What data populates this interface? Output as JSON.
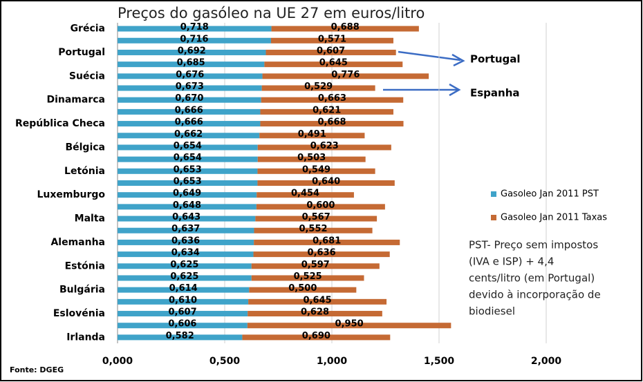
{
  "chart_data": {
    "type": "stacked_barh",
    "title": "Preços do gasóleo na UE 27 em euros/litro",
    "categories": [
      "Grécia",
      null,
      "Portugal",
      null,
      "Suécia",
      null,
      "Dinamarca",
      null,
      "República Checa",
      null,
      "Bélgica",
      null,
      "Letónia",
      null,
      "Luxemburgo",
      null,
      "Malta",
      null,
      "Alemanha",
      null,
      "Estónia",
      null,
      "Bulgária",
      null,
      "Eslovénia",
      null,
      "Irlanda"
    ],
    "series": [
      {
        "name": "Gasoleo Jan 2011 PST",
        "color": "#3fa3c9",
        "values": [
          0.718,
          0.716,
          0.692,
          0.685,
          0.676,
          0.673,
          0.67,
          0.666,
          0.666,
          0.662,
          0.654,
          0.654,
          0.653,
          0.653,
          0.649,
          0.648,
          0.643,
          0.637,
          0.636,
          0.634,
          0.625,
          0.625,
          0.614,
          0.61,
          0.607,
          0.606,
          0.582
        ],
        "value_labels": [
          "0,718",
          "0,716",
          "0,692",
          "0,685",
          "0,676",
          "0,673",
          "0,670",
          "0,666",
          "0,666",
          "0,662",
          "0,654",
          "0,654",
          "0,653",
          "0,653",
          "0,649",
          "0,648",
          "0,643",
          "0,637",
          "0,636",
          "0,634",
          "0,625",
          "0,625",
          "0,614",
          "0,610",
          "0,607",
          "0,606",
          "0,582"
        ]
      },
      {
        "name": "Gasoleo Jan 2011 Taxas",
        "color": "#c56a34",
        "values": [
          0.688,
          0.571,
          0.607,
          0.645,
          0.776,
          0.529,
          0.663,
          0.621,
          0.668,
          0.491,
          0.623,
          0.503,
          0.549,
          0.64,
          0.454,
          0.6,
          0.567,
          0.552,
          0.681,
          0.636,
          0.597,
          0.525,
          0.5,
          0.645,
          0.628,
          0.95,
          0.69
        ],
        "value_labels": [
          "0,688",
          "0,571",
          "0,607",
          "0,645",
          "0,776",
          "0,529",
          "0,663",
          "0,621",
          "0,668",
          "0,491",
          "0,623",
          "0,503",
          "0,549",
          "0,640",
          "0,454",
          "0,600",
          "0,567",
          "0,552",
          "0,681",
          "0,636",
          "0,597",
          "0,525",
          "0,500",
          "0,645",
          "0,628",
          "0,950",
          "0,690"
        ]
      }
    ],
    "xlim": [
      0,
      2
    ],
    "xticks": [
      {
        "value": 0,
        "label": "0,000"
      },
      {
        "value": 0.5,
        "label": "0,500"
      },
      {
        "value": 1,
        "label": "1,000"
      },
      {
        "value": 1.5,
        "label": "1,500"
      },
      {
        "value": 2,
        "label": "2,000"
      }
    ],
    "grid": true,
    "legend": "right",
    "annotations": [
      "Portugal",
      "Espanha"
    ],
    "note": [
      "PST- Preço sem impostos",
      "(IVA e ISP) + 4,4",
      "cents/litro (em Portugal)",
      "devido à incorporação de",
      "biodiesel"
    ],
    "source": "Fonte: DGEG"
  }
}
